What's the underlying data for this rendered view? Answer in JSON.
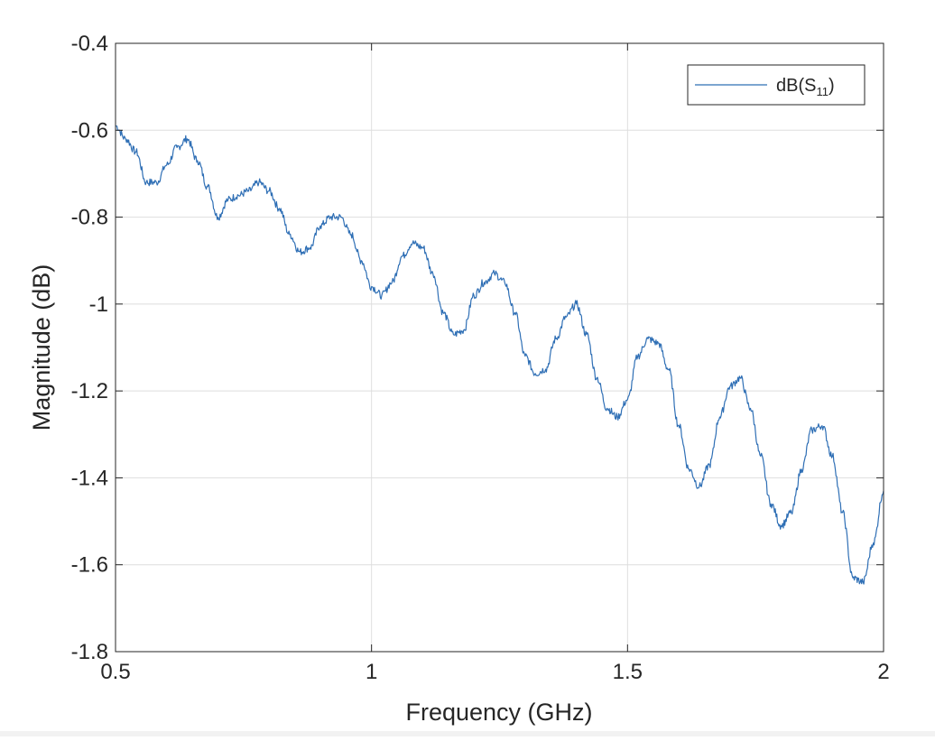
{
  "chart_data": {
    "type": "line",
    "title": "",
    "xlabel": "Frequency (GHz)",
    "ylabel": "Magnitude (dB)",
    "xlim": [
      0.5,
      2
    ],
    "ylim": [
      -1.8,
      -0.4
    ],
    "x_ticks": [
      0.5,
      1,
      1.5,
      2
    ],
    "x_tick_labels": [
      "0.5",
      "1",
      "1.5",
      "2"
    ],
    "y_ticks": [
      -1.8,
      -1.6,
      -1.4,
      -1.2,
      -1,
      -0.8,
      -0.6,
      -0.4
    ],
    "y_tick_labels": [
      "-1.8",
      "-1.6",
      "-1.4",
      "-1.2",
      "-1",
      "-0.8",
      "-0.6",
      "-0.4"
    ],
    "grid": true,
    "legend": {
      "position": "top-right",
      "text": "dB(S",
      "subscript": "11",
      "suffix": ")"
    },
    "series": [
      {
        "name": "dB(S11)",
        "color": "#2f6fb5",
        "x": [
          0.5,
          0.52,
          0.54,
          0.56,
          0.58,
          0.6,
          0.62,
          0.64,
          0.66,
          0.68,
          0.7,
          0.72,
          0.74,
          0.76,
          0.78,
          0.8,
          0.82,
          0.84,
          0.86,
          0.88,
          0.9,
          0.92,
          0.94,
          0.96,
          0.98,
          1.0,
          1.02,
          1.04,
          1.06,
          1.08,
          1.1,
          1.12,
          1.14,
          1.16,
          1.18,
          1.2,
          1.22,
          1.24,
          1.26,
          1.28,
          1.3,
          1.32,
          1.34,
          1.36,
          1.38,
          1.4,
          1.42,
          1.44,
          1.46,
          1.48,
          1.5,
          1.52,
          1.54,
          1.56,
          1.58,
          1.6,
          1.62,
          1.64,
          1.66,
          1.68,
          1.7,
          1.72,
          1.74,
          1.76,
          1.78,
          1.8,
          1.82,
          1.84,
          1.86,
          1.88,
          1.9,
          1.92,
          1.94,
          1.96,
          1.98,
          2.0
        ],
        "y": [
          -0.59,
          -0.62,
          -0.65,
          -0.72,
          -0.72,
          -0.68,
          -0.64,
          -0.62,
          -0.67,
          -0.73,
          -0.8,
          -0.76,
          -0.75,
          -0.74,
          -0.72,
          -0.74,
          -0.78,
          -0.84,
          -0.88,
          -0.87,
          -0.82,
          -0.8,
          -0.8,
          -0.84,
          -0.9,
          -0.96,
          -0.98,
          -0.95,
          -0.89,
          -0.86,
          -0.87,
          -0.93,
          -1.02,
          -1.07,
          -1.06,
          -0.98,
          -0.95,
          -0.93,
          -0.95,
          -1.02,
          -1.12,
          -1.16,
          -1.15,
          -1.08,
          -1.03,
          -1.0,
          -1.07,
          -1.17,
          -1.24,
          -1.26,
          -1.22,
          -1.12,
          -1.08,
          -1.09,
          -1.15,
          -1.28,
          -1.38,
          -1.42,
          -1.37,
          -1.26,
          -1.19,
          -1.17,
          -1.24,
          -1.35,
          -1.46,
          -1.51,
          -1.48,
          -1.38,
          -1.29,
          -1.28,
          -1.35,
          -1.48,
          -1.63,
          -1.64,
          -1.55,
          -1.43
        ]
      }
    ]
  }
}
